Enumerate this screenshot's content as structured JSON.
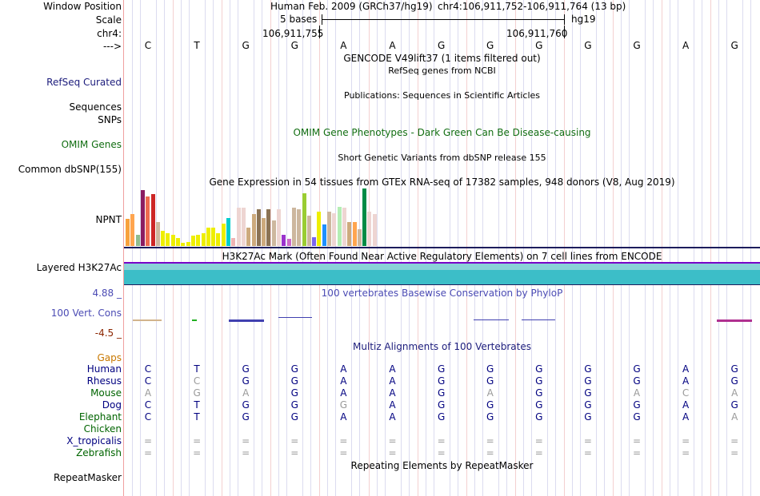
{
  "header": {
    "window_position_label": "Window Position",
    "assembly": "Human Feb. 2009 (GRCh37/hg19)",
    "position": "chr4:106,911,752-106,911,764 (13 bp)",
    "scale_label": "Scale",
    "scale_text": "5 bases",
    "scale_db": "hg19",
    "chrom_label": "chr4:",
    "coord_left": "106,911,755",
    "coord_right": "106,911,760",
    "strand_label": "--->",
    "bases": [
      "C",
      "T",
      "G",
      "G",
      "A",
      "A",
      "G",
      "G",
      "G",
      "G",
      "G",
      "A",
      "G"
    ]
  },
  "tracks": {
    "gencode_title": "GENCODE V49lift37 (1 items filtered out)",
    "refseq_desc": "RefSeq genes from NCBI",
    "refseq_label": "RefSeq Curated",
    "pubs_desc": "Publications: Sequences in Scientific Articles",
    "sequences_label": "Sequences",
    "snps_label": "SNPs",
    "omim_title": "OMIM Gene Phenotypes - Dark Green Can Be Disease-causing",
    "omim_label": "OMIM Genes",
    "dbsnp_desc": "Short Genetic Variants from dbSNP release 155",
    "dbsnp_label": "Common dbSNP(155)",
    "gtex_title": "Gene Expression in 54 tissues from GTEx RNA-seq of 17382 samples, 948 donors (V8, Aug 2019)",
    "gtex_gene": "NPNT",
    "h3k27ac_title": "H3K27Ac Mark (Often Found Near Active Regulatory Elements) on 7 cell lines from ENCODE",
    "h3k27ac_label": "Layered H3K27Ac",
    "phylop_title": "100 vertebrates Basewise Conservation by PhyloP",
    "phylop_max": "4.88 _",
    "phylop_label": "100 Vert. Cons",
    "phylop_min": "-4.5 _",
    "multiz_title": "Multiz Alignments of 100 Vertebrates",
    "gaps_label": "Gaps",
    "repeat_title": "Repeating Elements by RepeatMasker",
    "repeat_label": "RepeatMasker"
  },
  "gtex_bars": [
    {
      "value": 0.47,
      "color": "#f7a13c"
    },
    {
      "value": 0.55,
      "color": "#ffa54f"
    },
    {
      "value": 0.2,
      "color": "#8fbc8f"
    },
    {
      "value": 0.97,
      "color": "#8b1c62"
    },
    {
      "value": 0.86,
      "color": "#ee6a50"
    },
    {
      "value": 0.9,
      "color": "#cd2626"
    },
    {
      "value": 0.42,
      "color": "#cdb79e"
    },
    {
      "value": 0.26,
      "color": "#eeee00"
    },
    {
      "value": 0.22,
      "color": "#eeee00"
    },
    {
      "value": 0.2,
      "color": "#eeee00"
    },
    {
      "value": 0.14,
      "color": "#eeee00"
    },
    {
      "value": 0.05,
      "color": "#eeee00"
    },
    {
      "value": 0.07,
      "color": "#eeee00"
    },
    {
      "value": 0.18,
      "color": "#eeee00"
    },
    {
      "value": 0.19,
      "color": "#eeee00"
    },
    {
      "value": 0.22,
      "color": "#eeee00"
    },
    {
      "value": 0.32,
      "color": "#eeee00"
    },
    {
      "value": 0.32,
      "color": "#eeee00"
    },
    {
      "value": 0.22,
      "color": "#eeee00"
    },
    {
      "value": 0.39,
      "color": "#eeee00"
    },
    {
      "value": 0.48,
      "color": "#00cdcd"
    },
    {
      "value": 0.14,
      "color": "#eeb4b4"
    },
    {
      "value": 0.67,
      "color": "#eed5d2"
    },
    {
      "value": 0.67,
      "color": "#eed5d2"
    },
    {
      "value": 0.32,
      "color": "#cdaa7d"
    },
    {
      "value": 0.56,
      "color": "#cdaa7d"
    },
    {
      "value": 0.64,
      "color": "#8b7355"
    },
    {
      "value": 0.48,
      "color": "#cdaa7d"
    },
    {
      "value": 0.64,
      "color": "#8b7355"
    },
    {
      "value": 0.44,
      "color": "#cdb79e"
    },
    {
      "value": 0.64,
      "color": "#eed5d2"
    },
    {
      "value": 0.2,
      "color": "#9a32cd"
    },
    {
      "value": 0.12,
      "color": "#cd69c9"
    },
    {
      "value": 0.67,
      "color": "#cdb79e"
    },
    {
      "value": 0.64,
      "color": "#cdb79e"
    },
    {
      "value": 0.92,
      "color": "#9acd32"
    },
    {
      "value": 0.53,
      "color": "#cdb79e"
    },
    {
      "value": 0.15,
      "color": "#7a67ee"
    },
    {
      "value": 0.6,
      "color": "#eeee00"
    },
    {
      "value": 0.38,
      "color": "#1e90ff"
    },
    {
      "value": 0.6,
      "color": "#cdb79e"
    },
    {
      "value": 0.57,
      "color": "#eed5d2"
    },
    {
      "value": 0.68,
      "color": "#b4eeb4"
    },
    {
      "value": 0.67,
      "color": "#eed5d2"
    },
    {
      "value": 0.42,
      "color": "#cdaa7d"
    },
    {
      "value": 0.42,
      "color": "#ffa54f"
    },
    {
      "value": 0.29,
      "color": "#cdb79e"
    },
    {
      "value": 1.0,
      "color": "#008b45"
    },
    {
      "value": 0.6,
      "color": "#eed5d2"
    },
    {
      "value": 0.56,
      "color": "#eed5d2"
    }
  ],
  "species": [
    {
      "name": "Human",
      "color": "#000080",
      "bases": [
        "C",
        "T",
        "G",
        "G",
        "A",
        "A",
        "G",
        "G",
        "G",
        "G",
        "G",
        "A",
        "G"
      ],
      "dim": []
    },
    {
      "name": "Rhesus",
      "color": "#000080",
      "bases": [
        "C",
        "C",
        "G",
        "G",
        "A",
        "A",
        "G",
        "G",
        "G",
        "G",
        "G",
        "A",
        "G"
      ],
      "dim": [
        1
      ]
    },
    {
      "name": "Mouse",
      "color": "#006400",
      "bases": [
        "A",
        "G",
        "A",
        "G",
        "A",
        "A",
        "G",
        "A",
        "G",
        "G",
        "A",
        "C",
        "A"
      ],
      "dim": [
        0,
        1,
        2,
        7,
        10,
        11,
        12
      ]
    },
    {
      "name": "Dog",
      "color": "#000080",
      "bases": [
        "C",
        "T",
        "G",
        "G",
        "G",
        "A",
        "G",
        "G",
        "G",
        "G",
        "G",
        "A",
        "G"
      ],
      "dim": [
        4
      ]
    },
    {
      "name": "Elephant",
      "color": "#006400",
      "bases": [
        "C",
        "T",
        "G",
        "G",
        "A",
        "A",
        "G",
        "G",
        "G",
        "G",
        "G",
        "A",
        "A"
      ],
      "dim": [
        12
      ]
    },
    {
      "name": "Chicken",
      "color": "#006400",
      "bases": [
        "",
        "",
        "",
        "",
        "",
        "",
        "",
        "",
        "",
        "",
        "",
        "",
        ""
      ],
      "dim": []
    },
    {
      "name": "X_tropicalis",
      "color": "#000080",
      "bases": [
        "=",
        "=",
        "=",
        "=",
        "=",
        "=",
        "=",
        "=",
        "=",
        "=",
        "=",
        "=",
        "="
      ],
      "dim": [
        0,
        1,
        2,
        3,
        4,
        5,
        6,
        7,
        8,
        9,
        10,
        11,
        12
      ]
    },
    {
      "name": "Zebrafish",
      "color": "#006400",
      "bases": [
        "=",
        "=",
        "=",
        "=",
        "=",
        "=",
        "=",
        "=",
        "=",
        "=",
        "=",
        "=",
        "="
      ],
      "dim": [
        0,
        1,
        2,
        3,
        4,
        5,
        6,
        7,
        8,
        9,
        10,
        11,
        12
      ]
    }
  ],
  "colors": {
    "label_navy": "#1c1c7c",
    "label_green": "#126e12",
    "phylop_blue": "#4b4bb4",
    "phylop_min": "#8b2500",
    "gaps": "#c87800",
    "h3k27ac_fill": "#3cbec8",
    "h3k27ac_line": "#7800c8"
  }
}
